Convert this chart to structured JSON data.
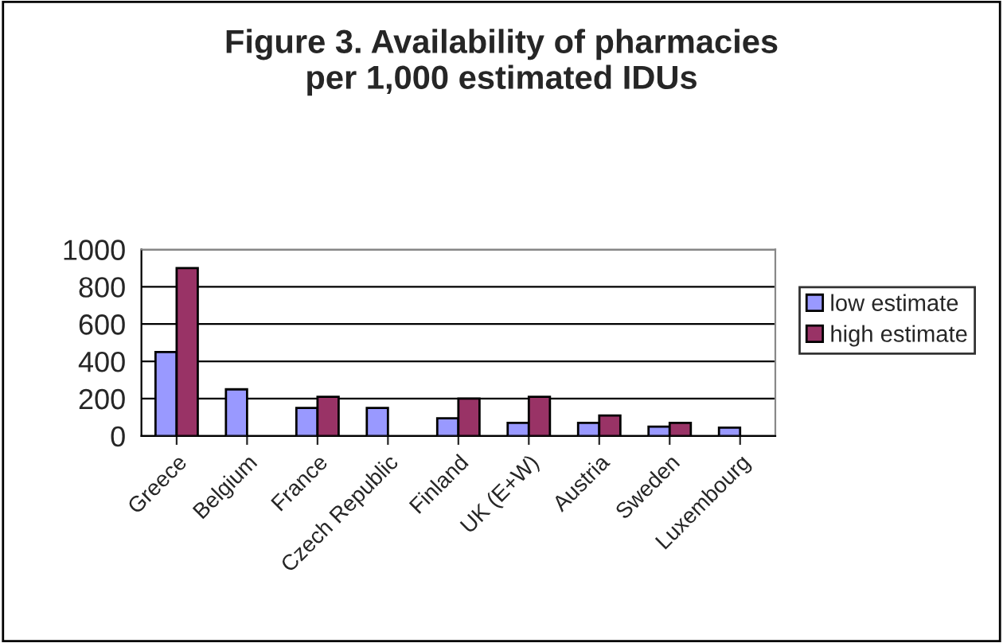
{
  "chart_data": {
    "type": "bar",
    "title": "Figure 3. Availability of pharmacies\nper 1,000 estimated IDUs",
    "categories": [
      "Greece",
      "Belgium",
      "France",
      "Czech Republic",
      "Finland",
      "UK (E+W)",
      "Austria",
      "Sweden",
      "Luxembourg"
    ],
    "series": [
      {
        "name": "low estimate",
        "color": "#9999ff",
        "values": [
          450,
          250,
          150,
          150,
          95,
          70,
          70,
          50,
          45
        ]
      },
      {
        "name": "high estimate",
        "color": "#993366",
        "values": [
          900,
          null,
          210,
          null,
          200,
          210,
          110,
          70,
          null
        ]
      }
    ],
    "ylim": [
      0,
      1000
    ],
    "yticks": [
      0,
      200,
      400,
      600,
      800,
      1000
    ],
    "grid": "y",
    "legend": "right"
  }
}
